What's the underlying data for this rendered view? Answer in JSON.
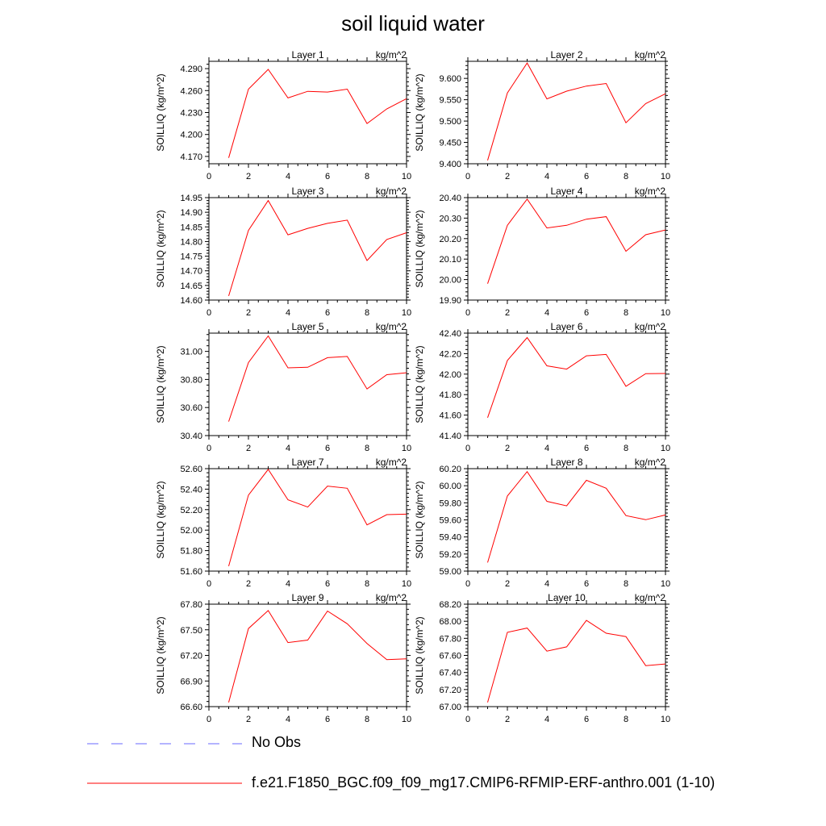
{
  "title": "soil liquid water",
  "legend": {
    "obs_label": "No Obs",
    "obs_color": "#8888ff",
    "model_label": "f.e21.F1850_BGC.f09_f09_mg17.CMIP6-RFMIP-ERF-anthro.001 (1-10)",
    "model_color": "#ff0000"
  },
  "chart_data": [
    {
      "type": "line",
      "title": "Layer 1",
      "units": "kg/m^2",
      "ylabel": "SOILLIQ  (kg/m^2)",
      "x": [
        1,
        2,
        3,
        4,
        5,
        6,
        7,
        8,
        9,
        10
      ],
      "xlim": [
        0,
        10
      ],
      "xticks": [
        "0",
        "2",
        "4",
        "6",
        "8",
        "10"
      ],
      "ylim": [
        4.16,
        4.3
      ],
      "yticks": [
        "4.170",
        "4.200",
        "4.230",
        "4.260",
        "4.290"
      ],
      "series": [
        {
          "name": "f.e21.F1850_BGC.f09_f09_mg17.CMIP6-RFMIP-ERF-anthro.001 (1-10)",
          "values": [
            4.168,
            4.262,
            4.289,
            4.25,
            4.259,
            4.258,
            4.262,
            4.215,
            4.235,
            4.249
          ]
        }
      ]
    },
    {
      "type": "line",
      "title": "Layer 2",
      "units": "kg/m^2",
      "ylabel": "SOILLIQ  (kg/m^2)",
      "x": [
        1,
        2,
        3,
        4,
        5,
        6,
        7,
        8,
        9,
        10
      ],
      "xlim": [
        0,
        10
      ],
      "xticks": [
        "0",
        "2",
        "4",
        "6",
        "8",
        "10"
      ],
      "ylim": [
        9.4,
        9.64
      ],
      "yticks": [
        "9.400",
        "9.450",
        "9.500",
        "9.550",
        "9.600"
      ],
      "series": [
        {
          "name": "f.e21.F1850_BGC.f09_f09_mg17.CMIP6-RFMIP-ERF-anthro.001 (1-10)",
          "values": [
            9.408,
            9.566,
            9.636,
            9.552,
            9.57,
            9.582,
            9.588,
            9.496,
            9.541,
            9.564
          ]
        }
      ]
    },
    {
      "type": "line",
      "title": "Layer 3",
      "units": "kg/m^2",
      "ylabel": "SOILLIQ  (kg/m^2)",
      "x": [
        1,
        2,
        3,
        4,
        5,
        6,
        7,
        8,
        9,
        10
      ],
      "xlim": [
        0,
        10
      ],
      "xticks": [
        "0",
        "2",
        "4",
        "6",
        "8",
        "10"
      ],
      "ylim": [
        14.6,
        14.95
      ],
      "yticks": [
        "14.60",
        "14.65",
        "14.70",
        "14.75",
        "14.80",
        "14.85",
        "14.90",
        "14.95"
      ],
      "series": [
        {
          "name": "f.e21.F1850_BGC.f09_f09_mg17.CMIP6-RFMIP-ERF-anthro.001 (1-10)",
          "values": [
            14.614,
            14.838,
            14.94,
            14.823,
            14.845,
            14.862,
            14.873,
            14.735,
            14.807,
            14.83
          ]
        }
      ]
    },
    {
      "type": "line",
      "title": "Layer 4",
      "units": "kg/m^2",
      "ylabel": "SOILLIQ  (kg/m^2)",
      "x": [
        1,
        2,
        3,
        4,
        5,
        6,
        7,
        8,
        9,
        10
      ],
      "xlim": [
        0,
        10
      ],
      "xticks": [
        "0",
        "2",
        "4",
        "6",
        "8",
        "10"
      ],
      "ylim": [
        19.9,
        20.4
      ],
      "yticks": [
        "19.90",
        "20.00",
        "20.10",
        "20.20",
        "20.30",
        "20.40"
      ],
      "series": [
        {
          "name": "f.e21.F1850_BGC.f09_f09_mg17.CMIP6-RFMIP-ERF-anthro.001 (1-10)",
          "values": [
            19.98,
            20.265,
            20.393,
            20.252,
            20.265,
            20.295,
            20.307,
            20.138,
            20.219,
            20.242
          ]
        }
      ]
    },
    {
      "type": "line",
      "title": "Layer 5",
      "units": "kg/m^2",
      "ylabel": "SOILLIQ  (kg/m^2)",
      "x": [
        1,
        2,
        3,
        4,
        5,
        6,
        7,
        8,
        9,
        10
      ],
      "xlim": [
        0,
        10
      ],
      "xticks": [
        "0",
        "2",
        "4",
        "6",
        "8",
        "10"
      ],
      "ylim": [
        30.4,
        31.13
      ],
      "yticks": [
        "30.40",
        "30.60",
        "30.80",
        "31.00"
      ],
      "series": [
        {
          "name": "f.e21.F1850_BGC.f09_f09_mg17.CMIP6-RFMIP-ERF-anthro.001 (1-10)",
          "values": [
            30.5,
            30.92,
            31.11,
            30.883,
            30.887,
            30.955,
            30.964,
            30.732,
            30.834,
            30.848
          ]
        }
      ]
    },
    {
      "type": "line",
      "title": "Layer 6",
      "units": "kg/m^2",
      "ylabel": "SOILLIQ  (kg/m^2)",
      "x": [
        1,
        2,
        3,
        4,
        5,
        6,
        7,
        8,
        9,
        10
      ],
      "xlim": [
        0,
        10
      ],
      "xticks": [
        "0",
        "2",
        "4",
        "6",
        "8",
        "10"
      ],
      "ylim": [
        41.4,
        42.4
      ],
      "yticks": [
        "41.40",
        "41.60",
        "41.80",
        "42.00",
        "42.20",
        "42.40"
      ],
      "series": [
        {
          "name": "f.e21.F1850_BGC.f09_f09_mg17.CMIP6-RFMIP-ERF-anthro.001 (1-10)",
          "values": [
            41.575,
            42.133,
            42.357,
            42.081,
            42.049,
            42.179,
            42.192,
            41.881,
            42.005,
            42.006
          ]
        }
      ]
    },
    {
      "type": "line",
      "title": "Layer 7",
      "units": "kg/m^2",
      "ylabel": "SOILLIQ  (kg/m^2)",
      "x": [
        1,
        2,
        3,
        4,
        5,
        6,
        7,
        8,
        9,
        10
      ],
      "xlim": [
        0,
        10
      ],
      "xticks": [
        "0",
        "2",
        "4",
        "6",
        "8",
        "10"
      ],
      "ylim": [
        51.6,
        52.6
      ],
      "yticks": [
        "51.60",
        "51.80",
        "52.00",
        "52.20",
        "52.40",
        "52.60"
      ],
      "series": [
        {
          "name": "f.e21.F1850_BGC.f09_f09_mg17.CMIP6-RFMIP-ERF-anthro.001 (1-10)",
          "values": [
            51.648,
            52.342,
            52.593,
            52.296,
            52.225,
            52.43,
            52.409,
            52.051,
            52.151,
            52.156
          ]
        }
      ]
    },
    {
      "type": "line",
      "title": "Layer 8",
      "units": "kg/m^2",
      "ylabel": "SOILLIQ  (kg/m^2)",
      "x": [
        1,
        2,
        3,
        4,
        5,
        6,
        7,
        8,
        9,
        10
      ],
      "xlim": [
        0,
        10
      ],
      "xticks": [
        "0",
        "2",
        "4",
        "6",
        "8",
        "10"
      ],
      "ylim": [
        59.0,
        60.2
      ],
      "yticks": [
        "59.00",
        "59.20",
        "59.40",
        "59.60",
        "59.80",
        "60.00",
        "60.20"
      ],
      "series": [
        {
          "name": "f.e21.F1850_BGC.f09_f09_mg17.CMIP6-RFMIP-ERF-anthro.001 (1-10)",
          "values": [
            59.1,
            59.88,
            60.165,
            59.817,
            59.764,
            60.064,
            59.97,
            59.65,
            59.602,
            59.658
          ]
        }
      ]
    },
    {
      "type": "line",
      "title": "Layer 9",
      "units": "kg/m^2",
      "ylabel": "SOILLIQ  (kg/m^2)",
      "x": [
        1,
        2,
        3,
        4,
        5,
        6,
        7,
        8,
        9,
        10
      ],
      "xlim": [
        0,
        10
      ],
      "xticks": [
        "0",
        "2",
        "4",
        "6",
        "8",
        "10"
      ],
      "ylim": [
        66.6,
        67.8
      ],
      "yticks": [
        "66.60",
        "66.90",
        "67.20",
        "67.50",
        "67.80"
      ],
      "series": [
        {
          "name": "f.e21.F1850_BGC.f09_f09_mg17.CMIP6-RFMIP-ERF-anthro.001 (1-10)",
          "values": [
            66.65,
            67.515,
            67.725,
            67.35,
            67.38,
            67.72,
            67.57,
            67.34,
            67.15,
            67.16
          ]
        }
      ]
    },
    {
      "type": "line",
      "title": "Layer 10",
      "units": "kg/m^2",
      "ylabel": "SOILLIQ  (kg/m^2)",
      "x": [
        1,
        2,
        3,
        4,
        5,
        6,
        7,
        8,
        9,
        10
      ],
      "xlim": [
        0,
        10
      ],
      "xticks": [
        "0",
        "2",
        "4",
        "6",
        "8",
        "10"
      ],
      "ylim": [
        67.0,
        68.2
      ],
      "yticks": [
        "67.00",
        "67.20",
        "67.40",
        "67.60",
        "67.80",
        "68.00",
        "68.20"
      ],
      "series": [
        {
          "name": "f.e21.F1850_BGC.f09_f09_mg17.CMIP6-RFMIP-ERF-anthro.001 (1-10)",
          "values": [
            67.05,
            67.87,
            67.92,
            67.65,
            67.7,
            68.01,
            67.86,
            67.82,
            67.48,
            67.5
          ]
        }
      ]
    }
  ]
}
